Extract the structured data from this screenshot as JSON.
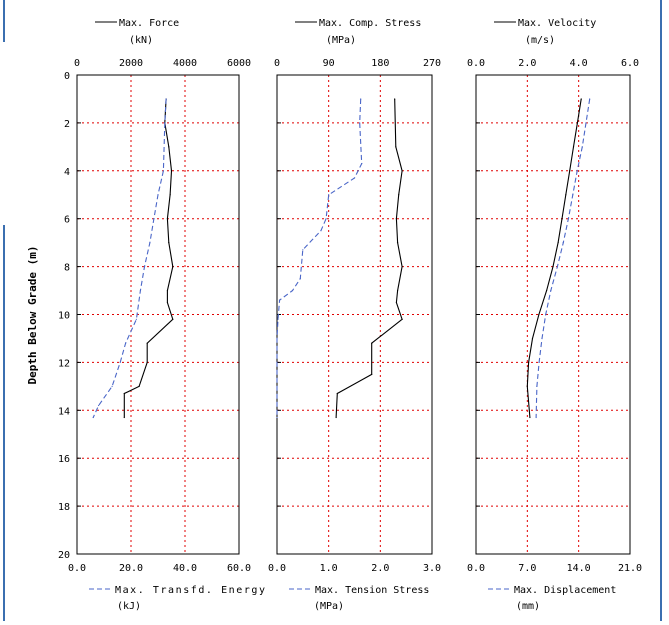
{
  "y_axis": {
    "label": "Depth Below Grade (m)",
    "min": 0,
    "max": 20,
    "ticks": [
      "0",
      "2",
      "4",
      "6",
      "8",
      "10",
      "12",
      "14",
      "16",
      "18",
      "20"
    ]
  },
  "chart_data": [
    {
      "type": "line",
      "grid": true,
      "top_axis": {
        "title": "Max. Force",
        "unit": "(kN)",
        "min": 0,
        "max": 6000,
        "ticks": [
          "0",
          "2000",
          "4000",
          "6000"
        ]
      },
      "bottom_axis": {
        "title": "Max. Transfd. Energy",
        "unit": "(kJ)",
        "min": 0,
        "max": 60,
        "ticks": [
          "0.0",
          "20.0",
          "40.0",
          "60.0"
        ]
      },
      "series": [
        {
          "name": "Max. Force",
          "axis": "top",
          "style": "solid",
          "color": "#000000",
          "points": [
            [
              3300,
              1.0
            ],
            [
              3250,
              2.0
            ],
            [
              3400,
              3.0
            ],
            [
              3500,
              4.0
            ],
            [
              3450,
              5.0
            ],
            [
              3350,
              6.0
            ],
            [
              3400,
              7.0
            ],
            [
              3550,
              8.0
            ],
            [
              3350,
              9.0
            ],
            [
              3350,
              9.5
            ],
            [
              3550,
              10.2
            ],
            [
              2600,
              11.2
            ],
            [
              2600,
              12.0
            ],
            [
              2300,
              13.0
            ],
            [
              1750,
              13.3
            ],
            [
              1750,
              14.3
            ]
          ]
        },
        {
          "name": "Max. Transfd. Energy",
          "axis": "bottom",
          "style": "dashed",
          "color": "#4a66c8",
          "points": [
            [
              33,
              1.0
            ],
            [
              32.5,
              2.0
            ],
            [
              32,
              4.0
            ],
            [
              30,
              5.0
            ],
            [
              28.5,
              6.0
            ],
            [
              27,
              7.0
            ],
            [
              25,
              8.0
            ],
            [
              23.5,
              9.0
            ],
            [
              22,
              10.2
            ],
            [
              18,
              11.2
            ],
            [
              16,
              12.0
            ],
            [
              13,
              13.0
            ],
            [
              8,
              13.8
            ],
            [
              6,
              14.3
            ]
          ]
        }
      ]
    },
    {
      "type": "line",
      "grid": true,
      "top_axis": {
        "title": "Max. Comp. Stress",
        "unit": "(MPa)",
        "min": 0,
        "max": 270,
        "ticks": [
          "0",
          "90",
          "180",
          "270"
        ]
      },
      "bottom_axis": {
        "title": "Max. Tension Stress",
        "unit": "(MPa)",
        "min": 0,
        "max": 3,
        "ticks": [
          "0.0",
          "1.0",
          "2.0",
          "3.0"
        ]
      },
      "series": [
        {
          "name": "Max. Comp. Stress",
          "axis": "top",
          "style": "solid",
          "color": "#000000",
          "points": [
            [
              205,
              1.0
            ],
            [
              207,
              3.0
            ],
            [
              218,
              4.0
            ],
            [
              212,
              5.0
            ],
            [
              208,
              6.0
            ],
            [
              210,
              7.0
            ],
            [
              218,
              8.0
            ],
            [
              210,
              9.0
            ],
            [
              208,
              9.5
            ],
            [
              218,
              10.2
            ],
            [
              165,
              11.2
            ],
            [
              165,
              12.5
            ],
            [
              105,
              13.3
            ],
            [
              103,
              14.3
            ]
          ]
        },
        {
          "name": "Max. Tension Stress",
          "axis": "bottom",
          "style": "dashed",
          "color": "#4a66c8",
          "points": [
            [
              1.62,
              1.0
            ],
            [
              1.6,
              2.0
            ],
            [
              1.64,
              3.7
            ],
            [
              1.5,
              4.3
            ],
            [
              1.0,
              5.0
            ],
            [
              0.95,
              6.0
            ],
            [
              0.85,
              6.5
            ],
            [
              0.5,
              7.3
            ],
            [
              0.45,
              8.5
            ],
            [
              0.3,
              9.0
            ],
            [
              0.05,
              9.4
            ],
            [
              0.02,
              10.2
            ],
            [
              0.0,
              11.0
            ],
            [
              0.0,
              14.3
            ]
          ]
        }
      ]
    },
    {
      "type": "line",
      "grid": true,
      "top_axis": {
        "title": "Max. Velocity",
        "unit": "(m/s)",
        "min": 0,
        "max": 6,
        "ticks": [
          "0.0",
          "2.0",
          "4.0",
          "6.0"
        ]
      },
      "bottom_axis": {
        "title": "Max. Displacement",
        "unit": "(mm)",
        "min": 0,
        "max": 21,
        "ticks": [
          "0.0",
          "7.0",
          "14.0",
          "21.0"
        ]
      },
      "series": [
        {
          "name": "Max. Velocity",
          "axis": "top",
          "style": "solid",
          "color": "#000000",
          "points": [
            [
              4.1,
              1.0
            ],
            [
              3.95,
              2.0
            ],
            [
              3.8,
              3.0
            ],
            [
              3.65,
              4.0
            ],
            [
              3.5,
              5.0
            ],
            [
              3.35,
              6.0
            ],
            [
              3.2,
              7.0
            ],
            [
              3.0,
              8.0
            ],
            [
              2.75,
              9.0
            ],
            [
              2.45,
              10.0
            ],
            [
              2.2,
              11.0
            ],
            [
              2.05,
              12.0
            ],
            [
              2.0,
              13.0
            ],
            [
              2.1,
              14.3
            ]
          ]
        },
        {
          "name": "Max. Displacement",
          "axis": "bottom",
          "style": "dashed",
          "color": "#4a66c8",
          "points": [
            [
              15.5,
              1.0
            ],
            [
              15.0,
              2.0
            ],
            [
              14.5,
              3.0
            ],
            [
              13.8,
              4.0
            ],
            [
              13.2,
              5.0
            ],
            [
              12.6,
              6.0
            ],
            [
              11.9,
              7.0
            ],
            [
              11.1,
              8.0
            ],
            [
              10.2,
              9.0
            ],
            [
              9.5,
              10.0
            ],
            [
              9.0,
              11.0
            ],
            [
              8.6,
              12.0
            ],
            [
              8.3,
              13.0
            ],
            [
              8.2,
              14.3
            ]
          ]
        }
      ]
    }
  ]
}
